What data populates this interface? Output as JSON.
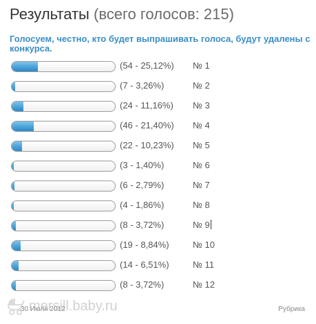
{
  "header": {
    "title": "Результаты",
    "total": "(всего голосов: 215)"
  },
  "question": "Голосуем, честно, кто будет выпрашивать голоса, будут удалены с конкурса.",
  "poll": {
    "fill_color": "#4fa5da",
    "options": [
      {
        "stat": "(54 - 25,12%)",
        "label": "№ 1",
        "percent": 25.12
      },
      {
        "stat": "(7 - 3,26%)",
        "label": "№ 2",
        "percent": 3.26
      },
      {
        "stat": "(24 - 11,16%)",
        "label": "№ 3",
        "percent": 11.16
      },
      {
        "stat": "(46 - 21,40%)",
        "label": "№ 4",
        "percent": 21.4
      },
      {
        "stat": "(22 - 10,23%)",
        "label": "№ 5",
        "percent": 10.23
      },
      {
        "stat": "(3 - 1,40%)",
        "label": "№ 6",
        "percent": 1.4
      },
      {
        "stat": "(6 - 2,79%)",
        "label": "№ 7",
        "percent": 2.79
      },
      {
        "stat": "(4 - 1,86%)",
        "label": "№ 8",
        "percent": 1.86
      },
      {
        "stat": "(8 - 3,72%)",
        "label": "№ 9",
        "percent": 3.72
      },
      {
        "stat": "(19 - 8,84%)",
        "label": "№ 10",
        "percent": 8.84
      },
      {
        "stat": "(14 - 6,51%)",
        "label": "№ 11",
        "percent": 6.51
      },
      {
        "stat": "(8 - 3,72%)",
        "label": "№ 12",
        "percent": 3.72
      }
    ]
  },
  "footer": {
    "date": "30 Июля 2012",
    "rubric": "Рубрика"
  },
  "watermark": {
    "text": "mersill.baby.ru",
    "icon": "baby-stroller-icon"
  }
}
